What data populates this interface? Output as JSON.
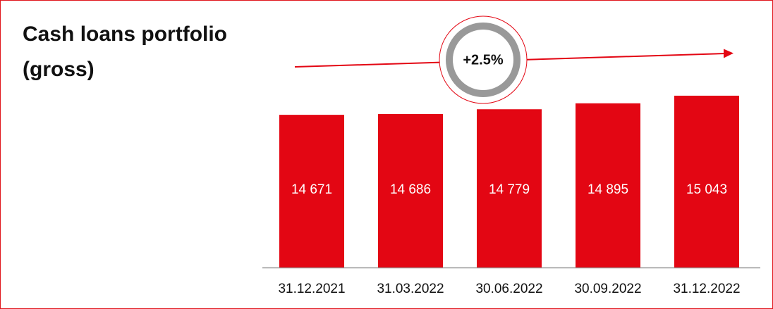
{
  "chart_data": {
    "type": "bar",
    "title": "Cash loans portfolio (gross)",
    "annotation": "+2.5%",
    "categories": [
      "31.12.2021",
      "31.03.2022",
      "30.06.2022",
      "30.09.2022",
      "31.12.2022"
    ],
    "values": [
      14671,
      14686,
      14779,
      14895,
      15043
    ],
    "value_labels": [
      "14 671",
      "14 686",
      "14 779",
      "14 895",
      "15 043"
    ],
    "color": "#e30613",
    "ylim": [
      11700,
      15100
    ]
  }
}
